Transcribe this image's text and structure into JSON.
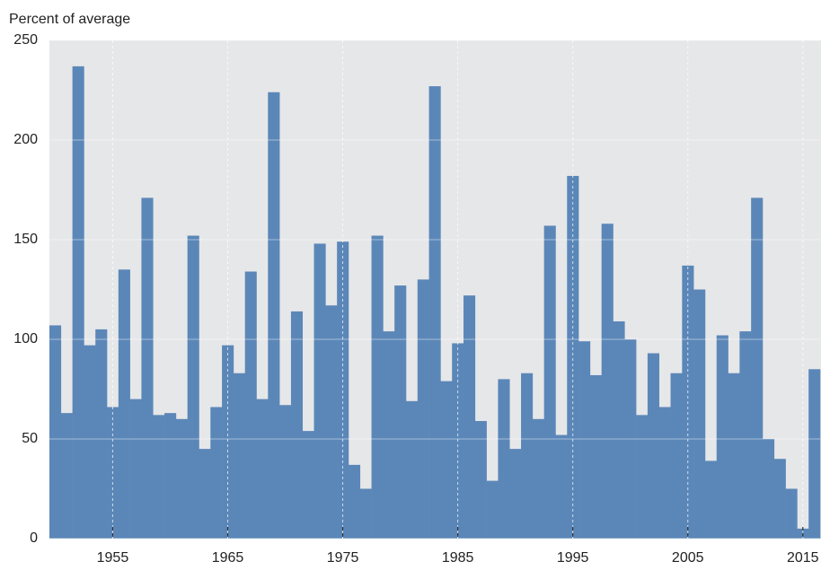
{
  "chart_data": {
    "type": "bar",
    "y_label": "Percent of average",
    "x": [
      1950,
      1951,
      1952,
      1953,
      1954,
      1955,
      1956,
      1957,
      1958,
      1959,
      1960,
      1961,
      1962,
      1963,
      1964,
      1965,
      1966,
      1967,
      1968,
      1969,
      1970,
      1971,
      1972,
      1973,
      1974,
      1975,
      1976,
      1977,
      1978,
      1979,
      1980,
      1981,
      1982,
      1983,
      1984,
      1985,
      1986,
      1987,
      1988,
      1989,
      1990,
      1991,
      1992,
      1993,
      1994,
      1995,
      1996,
      1997,
      1998,
      1999,
      2000,
      2001,
      2002,
      2003,
      2004,
      2005,
      2006,
      2007,
      2008,
      2009,
      2010,
      2011,
      2012,
      2013,
      2014,
      2015,
      2016
    ],
    "values": [
      107,
      63,
      237,
      97,
      105,
      66,
      135,
      70,
      171,
      62,
      63,
      60,
      152,
      45,
      66,
      97,
      83,
      134,
      70,
      224,
      67,
      114,
      54,
      148,
      117,
      149,
      37,
      25,
      152,
      104,
      127,
      69,
      130,
      227,
      79,
      98,
      122,
      59,
      29,
      80,
      45,
      83,
      60,
      157,
      52,
      182,
      99,
      82,
      158,
      109,
      100,
      62,
      93,
      66,
      83,
      137,
      125,
      39,
      102,
      83,
      104,
      171,
      50,
      40,
      25,
      5,
      85
    ],
    "color": "#5b87b8",
    "xlim": [
      1949.5,
      2016.5
    ],
    "xticks": [
      1955,
      1965,
      1975,
      1985,
      1995,
      2005,
      2015
    ],
    "ylim": [
      0,
      250
    ],
    "yticks": [
      0,
      50,
      100,
      150,
      200,
      250
    ],
    "grid": true
  }
}
